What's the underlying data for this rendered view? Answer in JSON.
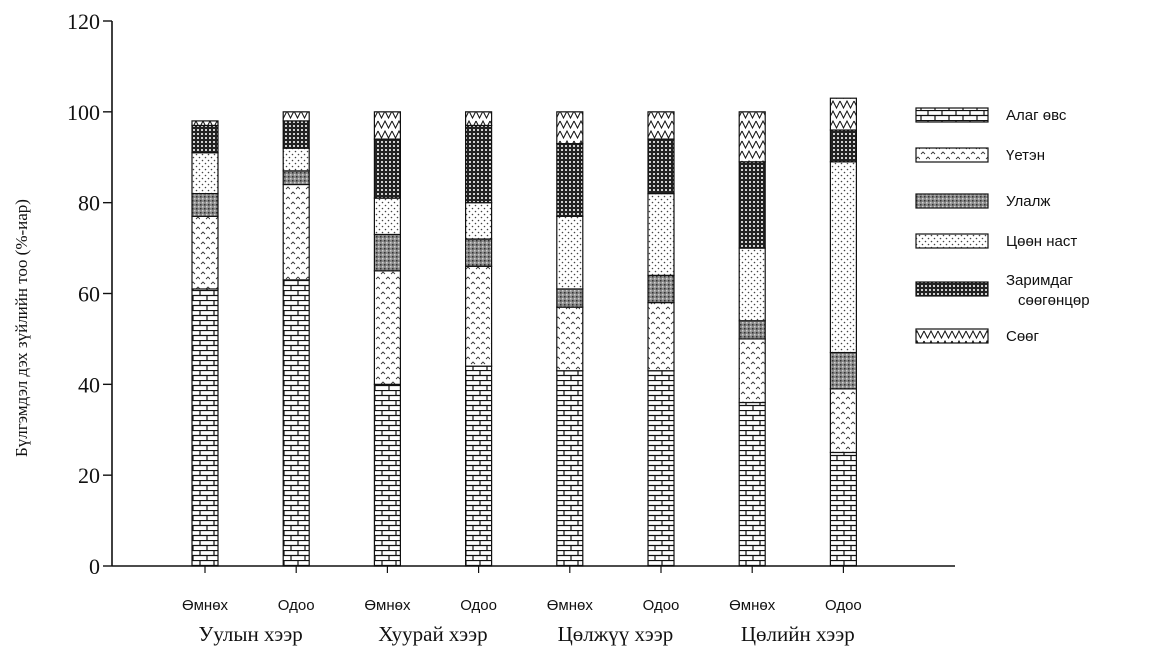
{
  "chart_data": {
    "type": "bar",
    "stacked": true,
    "ylabel": "Бүлгэмдэл дэх зүйлийн тоо (%-иар)",
    "ylim": [
      0,
      120
    ],
    "yticks": [
      0,
      20,
      40,
      60,
      80,
      100,
      120
    ],
    "grid": false,
    "legend_position": "right",
    "categories": [
      "Өмнөх",
      "Одоо",
      "Өмнөх",
      "Одоо",
      "Өмнөх",
      "Одоо",
      "Өмнөх",
      "Одоо"
    ],
    "groups": [
      "Уулын хээр",
      "Хуурай хээр",
      "Цөлжүү хээр",
      "Цөлийн хээр"
    ],
    "series": [
      {
        "name": "Алаг өвс",
        "pattern": "brick",
        "values": [
          61,
          63,
          40,
          44,
          43,
          43,
          36,
          25
        ]
      },
      {
        "name": "Үетэн",
        "pattern": "carets",
        "values": [
          16,
          21,
          25,
          22,
          14,
          15,
          14,
          14
        ]
      },
      {
        "name": "Улалж",
        "pattern": "stipple",
        "values": [
          5,
          3,
          8,
          6,
          4,
          6,
          4,
          8
        ]
      },
      {
        "name": "Цөөн наст",
        "pattern": "dots",
        "values": [
          9,
          5,
          8,
          8,
          16,
          18,
          16,
          42
        ]
      },
      {
        "name": "Заримдаг сөөгөнцөр",
        "pattern": "grid",
        "values": [
          6,
          6,
          13,
          17,
          16,
          12,
          19,
          7
        ]
      },
      {
        "name": "Сөөг",
        "pattern": "zigzag",
        "values": [
          1,
          2,
          6,
          3,
          7,
          6,
          11,
          7
        ]
      }
    ]
  }
}
